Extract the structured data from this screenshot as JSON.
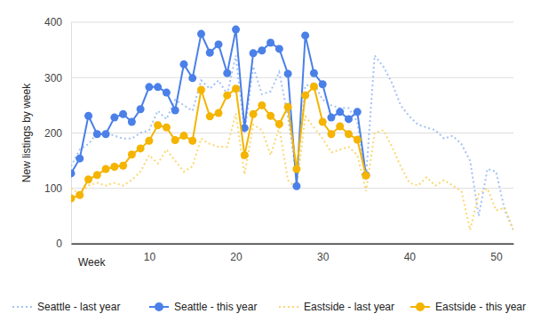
{
  "chart_data": {
    "type": "line",
    "x_label": "Week",
    "y_label": "New listings by week",
    "x": [
      1,
      2,
      3,
      4,
      5,
      6,
      7,
      8,
      9,
      10,
      11,
      12,
      13,
      14,
      15,
      16,
      17,
      18,
      19,
      20,
      21,
      22,
      23,
      24,
      25,
      26,
      27,
      28,
      29,
      30,
      31,
      32,
      33,
      34,
      35,
      36,
      37,
      38,
      39,
      40,
      41,
      42,
      43,
      44,
      45,
      46,
      47,
      48,
      49,
      50,
      51,
      52
    ],
    "xlim": [
      1,
      52
    ],
    "xticks": [
      10,
      20,
      30,
      40,
      50
    ],
    "ylim": [
      0,
      400
    ],
    "yticks": [
      0,
      100,
      200,
      300,
      400
    ],
    "grid": true,
    "legend": "bottom",
    "series": [
      {
        "name": "Seattle - last year",
        "color": "#a4c2f4",
        "line_style": "dotted",
        "marker": "none",
        "values": [
          140,
          170,
          180,
          200,
          200,
          195,
          190,
          190,
          200,
          205,
          240,
          225,
          260,
          250,
          240,
          295,
          280,
          295,
          270,
          340,
          200,
          320,
          270,
          275,
          310,
          230,
          120,
          285,
          290,
          260,
          250,
          245,
          245,
          220,
          120,
          340,
          320,
          290,
          250,
          230,
          215,
          210,
          205,
          190,
          195,
          180,
          150,
          50,
          135,
          130,
          60,
          25
        ]
      },
      {
        "name": "Seattle - this year",
        "color": "#4a80e8",
        "line_style": "solid",
        "marker": "circle",
        "values": [
          127,
          154,
          231,
          198,
          198,
          228,
          234,
          220,
          243,
          283,
          283,
          273,
          241,
          324,
          299,
          379,
          345,
          360,
          308,
          387,
          209,
          344,
          349,
          363,
          352,
          307,
          104,
          376,
          308,
          288,
          228,
          238,
          225,
          238,
          124,
          null,
          null,
          null,
          null,
          null,
          null,
          null,
          null,
          null,
          null,
          null,
          null,
          null,
          null,
          null,
          null,
          null
        ]
      },
      {
        "name": "Eastside - last year",
        "color": "#fbd772",
        "line_style": "dotted",
        "marker": "none",
        "values": [
          100,
          90,
          105,
          110,
          105,
          110,
          105,
          115,
          130,
          160,
          145,
          170,
          150,
          130,
          140,
          190,
          180,
          175,
          175,
          235,
          125,
          215,
          205,
          160,
          210,
          115,
          100,
          230,
          210,
          190,
          165,
          170,
          175,
          160,
          95,
          200,
          205,
          175,
          140,
          110,
          105,
          120,
          105,
          115,
          105,
          95,
          25,
          90,
          100,
          60,
          65,
          25
        ]
      },
      {
        "name": "Eastside - this year",
        "color": "#f4b400",
        "line_style": "solid",
        "marker": "circle",
        "values": [
          82,
          88,
          116,
          124,
          135,
          139,
          141,
          161,
          172,
          186,
          214,
          210,
          187,
          195,
          186,
          278,
          230,
          236,
          268,
          280,
          160,
          234,
          250,
          231,
          216,
          247,
          135,
          268,
          284,
          220,
          198,
          212,
          198,
          188,
          123,
          null,
          null,
          null,
          null,
          null,
          null,
          null,
          null,
          null,
          null,
          null,
          null,
          null,
          null,
          null,
          null,
          null
        ]
      }
    ]
  }
}
